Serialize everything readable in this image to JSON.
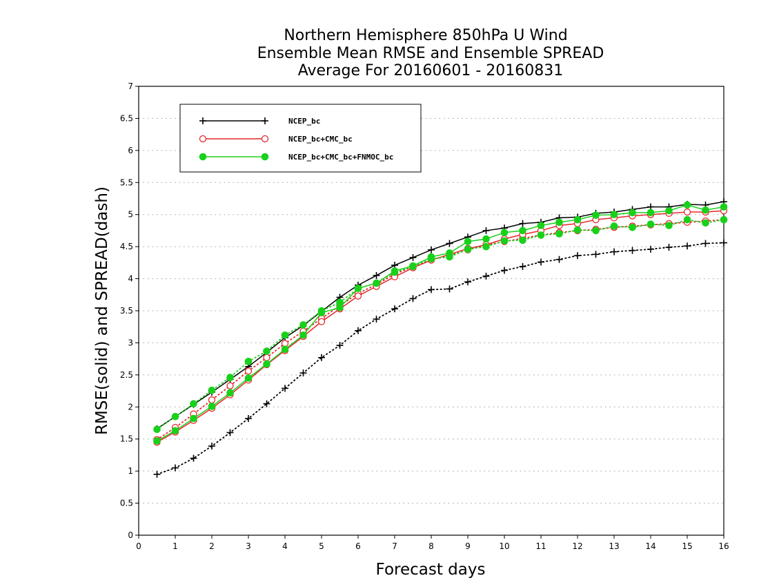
{
  "chart_data": {
    "type": "line",
    "title": [
      "Northern Hemisphere 850hPa U Wind",
      "Ensemble Mean RMSE and Ensemble SPREAD",
      "Average For 20160601 - 20160831"
    ],
    "xlabel": "Forecast days",
    "ylabel": "RMSE(solid) and SPREAD(dash)",
    "xlim": [
      0,
      16
    ],
    "ylim": [
      0,
      7
    ],
    "x_ticks": [
      0,
      1,
      2,
      3,
      4,
      5,
      6,
      7,
      8,
      9,
      10,
      11,
      12,
      13,
      14,
      15,
      16
    ],
    "y_ticks": [
      0,
      0.5,
      1,
      1.5,
      2,
      2.5,
      3,
      3.5,
      4,
      4.5,
      5,
      5.5,
      6,
      6.5,
      7
    ],
    "grid": "horizontal-dotted",
    "legend_position": "top-left",
    "x": [
      0.5,
      1,
      1.5,
      2,
      2.5,
      3,
      3.5,
      4,
      4.5,
      5,
      5.5,
      6,
      6.5,
      7,
      7.5,
      8,
      8.5,
      9,
      9.5,
      10,
      10.5,
      11,
      11.5,
      12,
      12.5,
      13,
      13.5,
      14,
      14.5,
      15,
      15.5,
      16
    ],
    "series": [
      {
        "name": "NCEP_bc",
        "color": "#000000",
        "marker": "plus",
        "rmse": [
          1.66,
          1.85,
          2.04,
          2.23,
          2.43,
          2.63,
          2.85,
          3.08,
          3.27,
          3.49,
          3.71,
          3.9,
          4.05,
          4.21,
          4.33,
          4.45,
          4.55,
          4.65,
          4.75,
          4.79,
          4.86,
          4.88,
          4.95,
          4.96,
          5.02,
          5.04,
          5.08,
          5.12,
          5.12,
          5.16,
          5.15,
          5.2
        ],
        "spread": [
          0.95,
          1.05,
          1.2,
          1.39,
          1.6,
          1.82,
          2.05,
          2.29,
          2.53,
          2.77,
          2.96,
          3.19,
          3.37,
          3.53,
          3.69,
          3.83,
          3.84,
          3.95,
          4.04,
          4.13,
          4.19,
          4.26,
          4.3,
          4.36,
          4.38,
          4.42,
          4.44,
          4.46,
          4.49,
          4.51,
          4.55,
          4.56
        ]
      },
      {
        "name": "NCEP_bc+CMC_bc",
        "color": "#e8262c",
        "marker": "open-circle",
        "rmse": [
          1.45,
          1.61,
          1.79,
          1.98,
          2.19,
          2.42,
          2.66,
          2.88,
          3.1,
          3.33,
          3.53,
          3.73,
          3.88,
          4.03,
          4.17,
          4.29,
          4.38,
          4.47,
          4.53,
          4.62,
          4.69,
          4.75,
          4.83,
          4.86,
          4.92,
          4.95,
          4.98,
          5.0,
          5.02,
          5.04,
          5.04,
          5.06
        ],
        "spread": [
          1.49,
          1.68,
          1.89,
          2.11,
          2.33,
          2.56,
          2.77,
          2.99,
          3.18,
          3.38,
          3.58,
          3.77,
          3.91,
          4.07,
          4.19,
          4.3,
          4.36,
          4.45,
          4.52,
          4.58,
          4.63,
          4.68,
          4.72,
          4.75,
          4.77,
          4.8,
          4.82,
          4.84,
          4.86,
          4.88,
          4.9,
          4.92
        ]
      },
      {
        "name": "NCEP_bc+CMC_bc+FNMOC_bc",
        "color": "#19d11b",
        "marker": "filled-circle",
        "rmse": [
          1.47,
          1.63,
          1.82,
          2.01,
          2.22,
          2.45,
          2.67,
          2.9,
          3.12,
          3.47,
          3.55,
          3.85,
          3.93,
          4.12,
          4.2,
          4.34,
          4.4,
          4.58,
          4.62,
          4.72,
          4.75,
          4.83,
          4.88,
          4.92,
          4.99,
          5.0,
          5.03,
          5.03,
          5.06,
          5.15,
          5.07,
          5.12
        ],
        "spread": [
          1.65,
          1.85,
          2.05,
          2.26,
          2.46,
          2.71,
          2.87,
          3.12,
          3.28,
          3.5,
          3.63,
          3.85,
          3.93,
          4.1,
          4.19,
          4.31,
          4.34,
          4.46,
          4.5,
          4.59,
          4.6,
          4.68,
          4.7,
          4.76,
          4.75,
          4.82,
          4.8,
          4.85,
          4.83,
          4.92,
          4.87,
          4.92
        ]
      }
    ]
  }
}
